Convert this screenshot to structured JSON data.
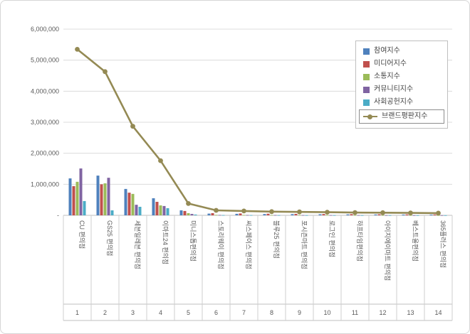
{
  "chart_data": {
    "type": "bar+line",
    "title": "",
    "grid": true,
    "legend_position": "top-right",
    "ylim": [
      0,
      6000000
    ],
    "ytick_labels": [
      "-",
      "1,000,000",
      "2,000,000",
      "3,000,000",
      "4,000,000",
      "5,000,000",
      "6,000,000"
    ],
    "categories": [
      "CU 편의점",
      "GS25 편의점",
      "세븐일레븐 편의점",
      "이마트24 편의점",
      "미니스톱편의점",
      "스토리웨이 편의점",
      "씨스페이스 편의점",
      "블루25 편의점",
      "포시즌마트 편의점",
      "로그인 편의점",
      "하프타임편의점",
      "아이지에이마트 편의점",
      "베스트올편의점",
      "365플러스 편의점"
    ],
    "category_numbers": [
      "1",
      "2",
      "3",
      "4",
      "5",
      "6",
      "7",
      "8",
      "9",
      "10",
      "11",
      "12",
      "13",
      "14"
    ],
    "bar_series": [
      {
        "name": "참여지수",
        "color": "#4F81BD",
        "values": [
          1190000,
          1280000,
          850000,
          550000,
          160000,
          55000,
          48000,
          42000,
          38000,
          34000,
          30000,
          27000,
          24000,
          22000
        ]
      },
      {
        "name": "미디어지수",
        "color": "#C0504D",
        "values": [
          940000,
          1000000,
          730000,
          435000,
          140000,
          70000,
          60000,
          52000,
          46000,
          42000,
          38000,
          34000,
          30000,
          27000
        ]
      },
      {
        "name": "소통지수",
        "color": "#9BBB59",
        "values": [
          1080000,
          1030000,
          690000,
          320000,
          70000,
          15000,
          12000,
          10000,
          9000,
          8000,
          7000,
          6000,
          5000,
          5000
        ]
      },
      {
        "name": "커뮤니티지수",
        "color": "#8064A2",
        "values": [
          1510000,
          1210000,
          340000,
          300000,
          45000,
          12000,
          10000,
          9000,
          8000,
          7000,
          6000,
          5000,
          4000,
          4000
        ]
      },
      {
        "name": "사회공헌지수",
        "color": "#4BACC6",
        "values": [
          460000,
          160000,
          275000,
          230000,
          25000,
          8000,
          7000,
          6000,
          5000,
          5000,
          4000,
          4000,
          3000,
          3000
        ]
      }
    ],
    "line_series": {
      "name": "브랜드평판지수",
      "color": "#948A54",
      "values": [
        5350000,
        4630000,
        2870000,
        1760000,
        380000,
        160000,
        140000,
        120000,
        110000,
        100000,
        90000,
        85000,
        78000,
        72000
      ]
    }
  }
}
